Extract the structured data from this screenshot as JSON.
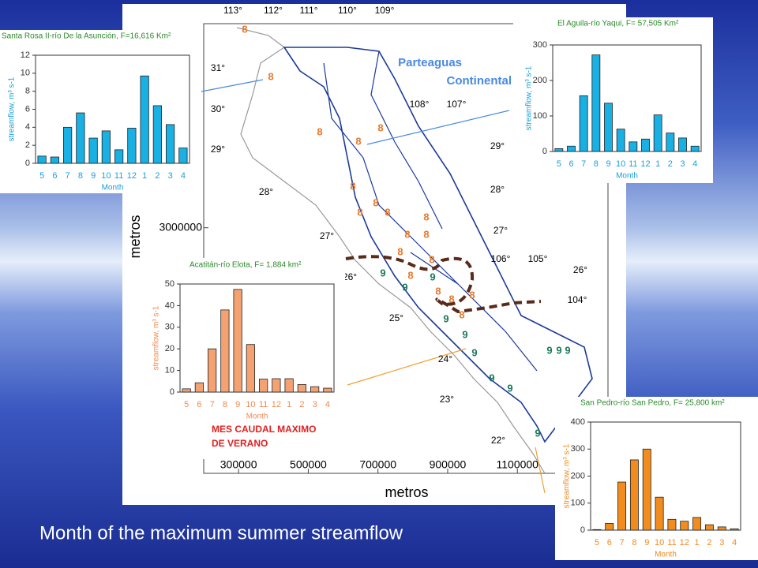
{
  "slide_title": "Month of the maximum summer streamflow",
  "map": {
    "xlabel": "metros",
    "ylabel": "metros",
    "xlim": [
      200000,
      1360000
    ],
    "ylim": [
      2290000,
      3590000
    ],
    "xticks": [
      300000,
      500000,
      700000,
      900000,
      1100000
    ],
    "yticks": [
      3000000
    ],
    "labels": [
      "113°",
      "112°",
      "111°",
      "110°",
      "109°",
      "31°",
      "30°",
      "29°",
      "28°",
      "27°",
      "26°",
      "25°",
      "24°",
      "23°",
      "22°",
      "108°",
      "107°",
      "29°",
      "28°",
      "27°",
      "106°",
      "105°",
      "26°",
      "104°"
    ],
    "divide_label": [
      "Parteaguas",
      "Continental"
    ],
    "markers": [
      "8",
      "9"
    ]
  },
  "annotation": [
    "MES CAUDAL MAXIMO",
    "DE VERANO"
  ],
  "chart_data": [
    {
      "type": "bar",
      "title": "Santa Rosa II-río De la Asunción, F=16,616 Km²",
      "xlabel": "Month",
      "ylabel": "streamflow, m³ s-1",
      "categories": [
        "5",
        "6",
        "7",
        "8",
        "9",
        "10",
        "11",
        "12",
        "1",
        "2",
        "3",
        "4"
      ],
      "values": [
        0.8,
        0.7,
        4.0,
        5.6,
        2.8,
        3.6,
        1.5,
        3.9,
        9.7,
        6.4,
        4.3,
        1.7
      ],
      "color": "#19b0e3",
      "ylim": [
        0,
        12
      ],
      "yticks": [
        0,
        2,
        4,
        6,
        8,
        10,
        12
      ]
    },
    {
      "type": "bar",
      "title": "El Aguila-río Yaqui, F= 57,505 Km²",
      "xlabel": "Month",
      "ylabel": "streamflow, m³ s-1",
      "categories": [
        "5",
        "6",
        "7",
        "8",
        "9",
        "10",
        "11",
        "12",
        "1",
        "2",
        "3",
        "4"
      ],
      "values": [
        8,
        15,
        157,
        272,
        136,
        63,
        27,
        35,
        103,
        52,
        38,
        15
      ],
      "color": "#19b0e3",
      "ylim": [
        0,
        300
      ],
      "yticks": [
        0,
        100,
        200,
        300
      ]
    },
    {
      "type": "bar",
      "title": "Acatitán-río Elota, F= 1,884 km²",
      "xlabel": "Month",
      "ylabel": "streamflow, m³ s-1",
      "categories": [
        "5",
        "6",
        "7",
        "8",
        "9",
        "10",
        "11",
        "12",
        "1",
        "2",
        "3",
        "4"
      ],
      "values": [
        1.5,
        4.3,
        20,
        38,
        47.5,
        22,
        6,
        6.2,
        6.2,
        3.5,
        2.5,
        1.8
      ],
      "color": "#f5a272",
      "ylim": [
        0,
        50
      ],
      "yticks": [
        0,
        10,
        20,
        30,
        40,
        50
      ]
    },
    {
      "type": "bar",
      "title": "San Pedro-río San Pedro, F= 25,800 km²",
      "xlabel": "Month",
      "ylabel": "streamflow, m³ s-1",
      "categories": [
        "5",
        "6",
        "7",
        "8",
        "9",
        "10",
        "11",
        "12",
        "1",
        "2",
        "3",
        "4"
      ],
      "values": [
        2,
        25,
        178,
        260,
        300,
        122,
        40,
        33,
        47,
        20,
        12,
        5
      ],
      "color": "#f28c1e",
      "ylim": [
        0,
        400
      ],
      "yticks": [
        0,
        100,
        200,
        300,
        400
      ]
    }
  ]
}
